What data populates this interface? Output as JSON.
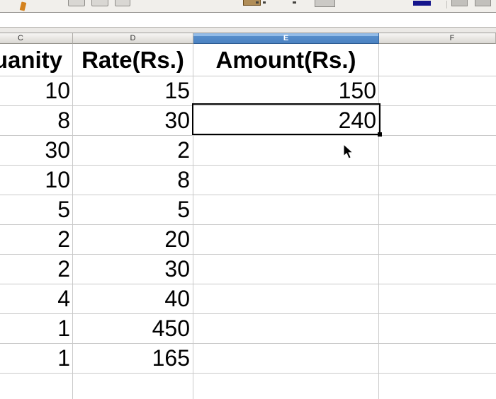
{
  "toolbar": {
    "icons": [
      "clone-formatting-icon",
      "border-style-icon",
      "background-color-icon",
      "align-icon",
      "font-color-icon"
    ]
  },
  "formula_bar": {
    "value": ""
  },
  "column_headers": [
    {
      "label": "C",
      "selected": false
    },
    {
      "label": "D",
      "selected": false
    },
    {
      "label": "E",
      "selected": true
    },
    {
      "label": "F",
      "selected": false
    }
  ],
  "sheet": {
    "title_row": {
      "c": "uanity",
      "d": "Rate(Rs.)",
      "e": "Amount(Rs.)"
    },
    "rows": [
      {
        "c": "10",
        "d": "15",
        "e": "150"
      },
      {
        "c": "8",
        "d": "30",
        "e": "240"
      },
      {
        "c": "30",
        "d": "2",
        "e": ""
      },
      {
        "c": "10",
        "d": "8",
        "e": ""
      },
      {
        "c": "5",
        "d": "5",
        "e": ""
      },
      {
        "c": "2",
        "d": "20",
        "e": ""
      },
      {
        "c": "2",
        "d": "30",
        "e": ""
      },
      {
        "c": "4",
        "d": "40",
        "e": ""
      },
      {
        "c": "1",
        "d": "450",
        "e": ""
      },
      {
        "c": "1",
        "d": "165",
        "e": ""
      }
    ],
    "selection": {
      "column_header": "E",
      "value": "240"
    }
  },
  "colors": {
    "selected_header_blue": "#4b82c2",
    "gridline": "#c9c9c9",
    "selection_border": "#000000",
    "toolbar_navy_accent": "#15158c",
    "toolbar_orange_accent": "#d4821e",
    "toolbar_tan_accent": "#b08d57"
  }
}
